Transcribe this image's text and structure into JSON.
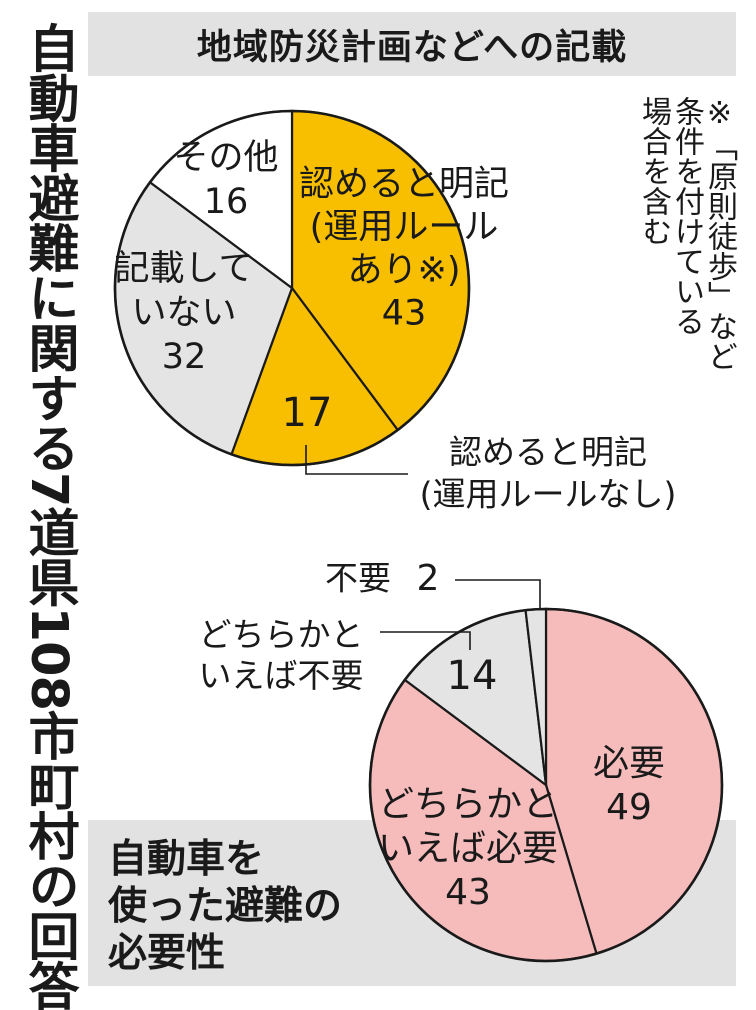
{
  "title": "自動車避難に関する7道県108市町村の回答",
  "note": "※「原則徒歩」など\n条件を付けている\n場合を含む",
  "chart_data": [
    {
      "type": "pie",
      "title": "地域防災計画などへの記載",
      "slices": [
        {
          "label": "認めると明記\n(運用ルール\nあり※)",
          "value": 43,
          "color": "#f7bf00"
        },
        {
          "label": "認めると明記\n(運用ルールなし)",
          "value": 17,
          "color": "#f7bf00"
        },
        {
          "label": "記載して\nいない",
          "value": 32,
          "color": "#e4e4e4"
        },
        {
          "label": "その他",
          "value": 16,
          "color": "#ffffff"
        }
      ]
    },
    {
      "type": "pie",
      "title": "自動車を\n使った避難の\n必要性",
      "slices": [
        {
          "label": "必要",
          "value": 49,
          "color": "#f6bcbc"
        },
        {
          "label": "どちらかと\nいえば必要",
          "value": 43,
          "color": "#f6bcbc"
        },
        {
          "label": "どちらかと\nいえば不要",
          "value": 14,
          "color": "#e4e4e4"
        },
        {
          "label": "不要",
          "value": 2,
          "color": "#e4e4e4"
        }
      ]
    }
  ]
}
